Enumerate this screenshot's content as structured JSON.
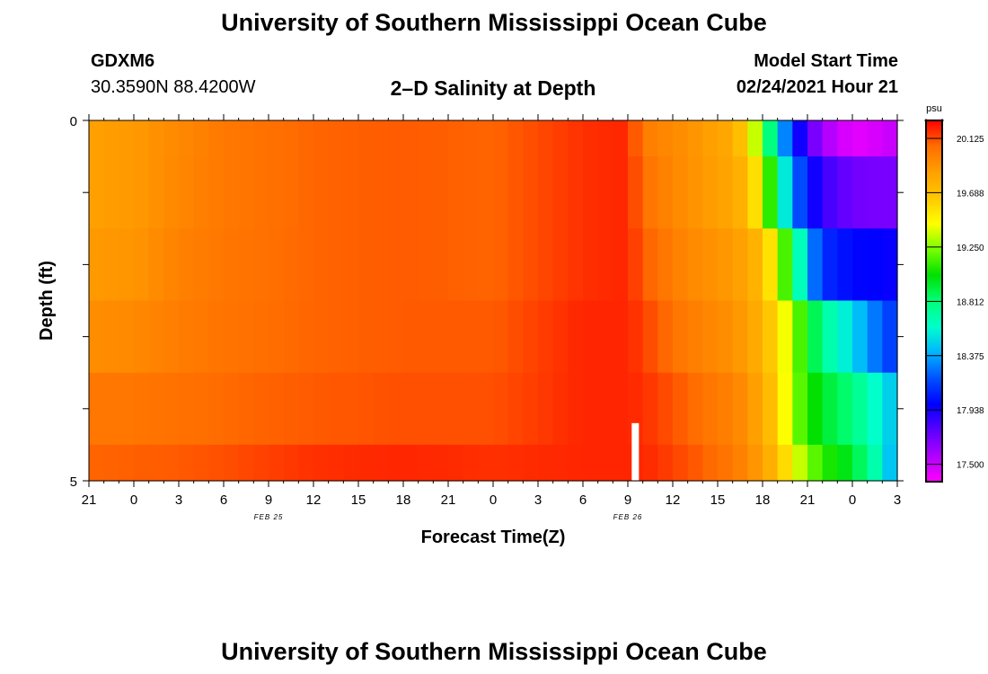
{
  "header": {
    "title": "University of Southern Mississippi Ocean Cube",
    "station": "GDXM6",
    "coords": "30.3590N 88.4200W",
    "plot_title": "2–D Salinity at Depth",
    "model_label": "Model Start Time",
    "model_time": "02/24/2021 Hour 21"
  },
  "footer": {
    "title": "University of Southern Mississippi Ocean Cube"
  },
  "chart_data": {
    "type": "heatmap",
    "title": "2–D Salinity at Depth",
    "xlabel": "Forecast Time(Z)",
    "ylabel": "Depth (ft)",
    "x_ticks": [
      "21",
      "0",
      "3",
      "6",
      "9",
      "12",
      "15",
      "18",
      "21",
      "0",
      "3",
      "6",
      "9",
      "12",
      "15",
      "18",
      "21",
      "0",
      "3"
    ],
    "date_labels": [
      {
        "label": "FEB 25",
        "at_hour": 12
      },
      {
        "label": "FEB 26",
        "at_hour": 36
      }
    ],
    "x_range_hours": [
      0,
      54
    ],
    "y_ticks": [
      "0",
      "5"
    ],
    "ylim": [
      0,
      5
    ],
    "colorbar": {
      "unit": "psu",
      "min": 17.36,
      "max": 20.27,
      "tick_values": [
        20.125,
        19.688,
        19.25,
        18.812,
        18.375,
        17.938,
        17.5
      ],
      "tick_labels": [
        "20.125",
        "19.688",
        "19.250",
        "18.812",
        "18.375",
        "17.938",
        "17.500"
      ],
      "colors": [
        "#ff00ff",
        "#b000ff",
        "#5a00ff",
        "#0000ff",
        "#0050ff",
        "#00b4ff",
        "#00ffcc",
        "#00ff78",
        "#00e000",
        "#78ff00",
        "#ffff00",
        "#ffc800",
        "#ffa000",
        "#ff6e00",
        "#ff0000"
      ]
    },
    "now_marker_hour": 36.5,
    "depth_rows_ft": [
      0.25,
      1.0,
      2.0,
      3.0,
      4.0,
      4.75
    ],
    "row_breaks_ft": [
      0,
      0.5,
      1.5,
      2.5,
      3.5,
      4.5,
      5
    ],
    "salinity_keyframes": [
      {
        "hour": 0,
        "values": [
          19.85,
          19.85,
          19.88,
          19.93,
          20.03,
          20.08
        ]
      },
      {
        "hour": 3,
        "values": [
          19.88,
          19.88,
          19.9,
          19.95,
          20.03,
          20.09
        ]
      },
      {
        "hour": 6,
        "values": [
          19.95,
          19.96,
          19.98,
          20.0,
          20.05,
          20.1
        ]
      },
      {
        "hour": 9,
        "values": [
          20.02,
          20.02,
          20.03,
          20.04,
          20.07,
          20.12
        ]
      },
      {
        "hour": 15,
        "values": [
          20.08,
          20.08,
          20.08,
          20.08,
          20.1,
          20.18
        ]
      },
      {
        "hour": 21,
        "values": [
          20.1,
          20.1,
          20.1,
          20.1,
          20.12,
          20.2
        ]
      },
      {
        "hour": 27,
        "values": [
          20.08,
          20.08,
          20.08,
          20.1,
          20.12,
          20.18
        ]
      },
      {
        "hour": 33,
        "values": [
          20.18,
          20.18,
          20.18,
          20.2,
          20.2,
          20.2
        ]
      },
      {
        "hour": 36,
        "values": [
          20.2,
          20.2,
          20.2,
          20.2,
          20.2,
          20.2
        ]
      },
      {
        "hour": 37,
        "values": [
          20.0,
          20.05,
          20.1,
          20.15,
          20.18,
          20.2
        ]
      },
      {
        "hour": 40,
        "values": [
          19.92,
          19.92,
          19.95,
          20.0,
          20.08,
          20.12
        ]
      },
      {
        "hour": 43,
        "values": [
          19.8,
          19.82,
          19.88,
          19.92,
          19.98,
          20.02
        ]
      },
      {
        "hour": 44,
        "values": [
          19.6,
          19.72,
          19.82,
          19.85,
          19.92,
          19.95
        ]
      },
      {
        "hour": 45,
        "values": [
          19.1,
          19.4,
          19.7,
          19.75,
          19.8,
          19.85
        ]
      },
      {
        "hour": 46,
        "values": [
          18.5,
          18.8,
          19.4,
          19.55,
          19.62,
          19.7
        ]
      },
      {
        "hour": 47,
        "values": [
          18.1,
          18.3,
          18.9,
          19.3,
          19.25,
          19.45
        ]
      },
      {
        "hour": 48,
        "values": [
          17.8,
          18.05,
          18.4,
          19.0,
          19.1,
          19.25
        ]
      },
      {
        "hour": 49,
        "values": [
          17.6,
          17.85,
          18.1,
          18.75,
          18.95,
          19.1
        ]
      },
      {
        "hour": 51,
        "values": [
          17.42,
          17.72,
          18.0,
          18.5,
          18.8,
          18.95
        ]
      },
      {
        "hour": 53,
        "values": [
          17.48,
          17.7,
          17.98,
          18.2,
          18.55,
          18.6
        ]
      },
      {
        "hour": 54,
        "values": [
          17.52,
          17.7,
          17.95,
          18.1,
          18.4,
          18.3
        ]
      }
    ]
  }
}
